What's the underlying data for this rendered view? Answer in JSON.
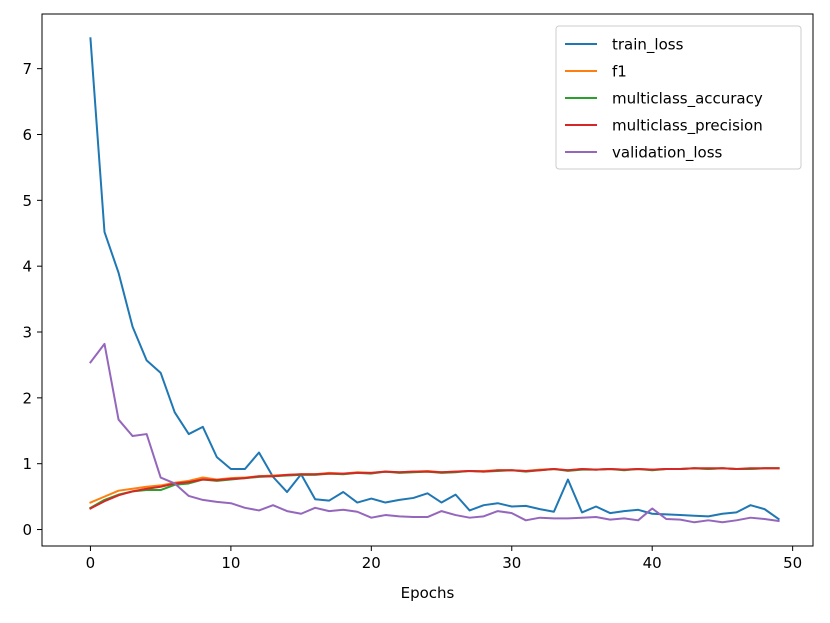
{
  "chart_data": {
    "type": "line",
    "title": "",
    "xlabel": "Epochs",
    "ylabel": "",
    "xlim": [
      -3.45,
      51.45
    ],
    "ylim": [
      -0.25,
      7.83
    ],
    "xticks": [
      0,
      10,
      20,
      30,
      40,
      50
    ],
    "yticks": [
      0,
      1,
      2,
      3,
      4,
      5,
      6,
      7
    ],
    "grid": false,
    "legend_position": "top-right",
    "x": [
      0,
      1,
      2,
      3,
      4,
      5,
      6,
      7,
      8,
      9,
      10,
      11,
      12,
      13,
      14,
      15,
      16,
      17,
      18,
      19,
      20,
      21,
      22,
      23,
      24,
      25,
      26,
      27,
      28,
      29,
      30,
      31,
      32,
      33,
      34,
      35,
      36,
      37,
      38,
      39,
      40,
      41,
      42,
      43,
      44,
      45,
      46,
      47,
      48,
      49
    ],
    "series": [
      {
        "name": "train_loss",
        "color": "#1f77b4",
        "values": [
          7.46,
          4.52,
          3.9,
          3.08,
          2.57,
          2.38,
          1.78,
          1.45,
          1.56,
          1.1,
          0.92,
          0.92,
          1.17,
          0.8,
          0.57,
          0.84,
          0.46,
          0.44,
          0.57,
          0.41,
          0.47,
          0.41,
          0.45,
          0.48,
          0.55,
          0.41,
          0.53,
          0.29,
          0.37,
          0.4,
          0.35,
          0.36,
          0.31,
          0.27,
          0.76,
          0.26,
          0.35,
          0.25,
          0.28,
          0.3,
          0.24,
          0.23,
          0.22,
          0.21,
          0.2,
          0.24,
          0.26,
          0.37,
          0.31,
          0.16
        ]
      },
      {
        "name": "f1",
        "color": "#ff7f0e",
        "values": [
          0.41,
          0.5,
          0.59,
          0.62,
          0.65,
          0.67,
          0.71,
          0.74,
          0.79,
          0.76,
          0.78,
          0.79,
          0.81,
          0.82,
          0.83,
          0.84,
          0.84,
          0.86,
          0.85,
          0.87,
          0.86,
          0.88,
          0.87,
          0.88,
          0.89,
          0.87,
          0.88,
          0.89,
          0.89,
          0.9,
          0.9,
          0.89,
          0.91,
          0.92,
          0.9,
          0.92,
          0.91,
          0.92,
          0.91,
          0.92,
          0.91,
          0.92,
          0.92,
          0.93,
          0.92,
          0.93,
          0.92,
          0.92,
          0.93,
          0.93
        ]
      },
      {
        "name": "multiclass_accuracy",
        "color": "#2ca02c",
        "values": [
          0.33,
          0.45,
          0.53,
          0.58,
          0.6,
          0.6,
          0.68,
          0.7,
          0.76,
          0.74,
          0.76,
          0.78,
          0.8,
          0.81,
          0.82,
          0.83,
          0.83,
          0.85,
          0.84,
          0.86,
          0.85,
          0.88,
          0.86,
          0.87,
          0.88,
          0.86,
          0.87,
          0.89,
          0.88,
          0.89,
          0.9,
          0.88,
          0.9,
          0.92,
          0.89,
          0.91,
          0.91,
          0.92,
          0.9,
          0.92,
          0.9,
          0.92,
          0.92,
          0.93,
          0.92,
          0.93,
          0.92,
          0.92,
          0.93,
          0.93
        ]
      },
      {
        "name": "multiclass_precision",
        "color": "#d62728",
        "values": [
          0.32,
          0.43,
          0.52,
          0.58,
          0.62,
          0.65,
          0.7,
          0.72,
          0.76,
          0.75,
          0.77,
          0.78,
          0.81,
          0.81,
          0.83,
          0.84,
          0.84,
          0.85,
          0.85,
          0.86,
          0.86,
          0.88,
          0.87,
          0.88,
          0.88,
          0.87,
          0.88,
          0.89,
          0.88,
          0.9,
          0.9,
          0.89,
          0.9,
          0.92,
          0.9,
          0.92,
          0.91,
          0.92,
          0.91,
          0.92,
          0.91,
          0.92,
          0.92,
          0.93,
          0.93,
          0.93,
          0.92,
          0.93,
          0.93,
          0.93
        ]
      },
      {
        "name": "validation_loss",
        "color": "#9467bd",
        "values": [
          2.54,
          2.82,
          1.67,
          1.42,
          1.45,
          0.79,
          0.7,
          0.51,
          0.45,
          0.42,
          0.4,
          0.33,
          0.29,
          0.37,
          0.28,
          0.24,
          0.33,
          0.28,
          0.3,
          0.27,
          0.18,
          0.22,
          0.2,
          0.19,
          0.19,
          0.28,
          0.22,
          0.18,
          0.2,
          0.28,
          0.25,
          0.14,
          0.18,
          0.17,
          0.17,
          0.18,
          0.19,
          0.15,
          0.17,
          0.14,
          0.32,
          0.16,
          0.15,
          0.11,
          0.14,
          0.11,
          0.14,
          0.18,
          0.16,
          0.13
        ]
      }
    ]
  }
}
